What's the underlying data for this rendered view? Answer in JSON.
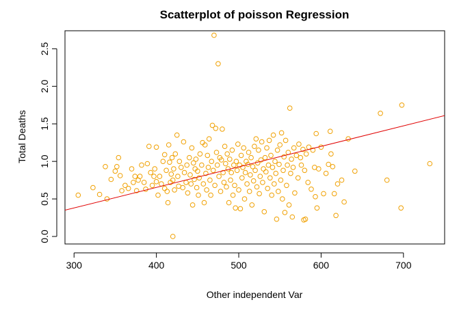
{
  "chart_data": {
    "type": "scatter",
    "title": "Scatterplot of poisson Regression",
    "xlabel": "Other independent Var",
    "ylabel": "Total Deaths",
    "xlim": [
      289,
      750
    ],
    "ylim": [
      -0.1,
      2.74
    ],
    "x_ticks": [
      300,
      400,
      500,
      600,
      700
    ],
    "x_tick_labels": [
      "300",
      "400",
      "500",
      "600",
      "700"
    ],
    "y_ticks": [
      0.0,
      0.5,
      1.0,
      1.5,
      2.0,
      2.5
    ],
    "y_tick_labels": [
      "0.0",
      "0.5",
      "1.0",
      "1.5",
      "2.0",
      "2.5"
    ],
    "grid": false,
    "colors": {
      "points": "#f0a000",
      "line": "#e00000"
    },
    "regression_line": {
      "x": [
        289,
        750
      ],
      "y": [
        0.35,
        1.61
      ]
    },
    "points": [
      [
        305,
        0.55
      ],
      [
        323,
        0.65
      ],
      [
        331,
        0.56
      ],
      [
        338,
        0.93
      ],
      [
        340,
        0.5
      ],
      [
        345,
        0.76
      ],
      [
        350,
        0.87
      ],
      [
        352,
        0.93
      ],
      [
        354,
        1.05
      ],
      [
        356,
        0.81
      ],
      [
        358,
        0.61
      ],
      [
        362,
        0.68
      ],
      [
        366,
        0.64
      ],
      [
        370,
        0.9
      ],
      [
        372,
        0.72
      ],
      [
        374,
        0.8
      ],
      [
        376,
        0.61
      ],
      [
        378,
        0.75
      ],
      [
        380,
        0.8
      ],
      [
        382,
        0.95
      ],
      [
        385,
        0.72
      ],
      [
        387,
        0.63
      ],
      [
        389,
        0.97
      ],
      [
        391,
        1.2
      ],
      [
        393,
        0.85
      ],
      [
        395,
        0.68
      ],
      [
        397,
        0.8
      ],
      [
        398,
        0.9
      ],
      [
        400,
        1.19
      ],
      [
        400,
        0.73
      ],
      [
        402,
        0.55
      ],
      [
        404,
        0.8
      ],
      [
        406,
        0.7
      ],
      [
        408,
        1.0
      ],
      [
        410,
        1.09
      ],
      [
        410,
        0.64
      ],
      [
        412,
        0.88
      ],
      [
        413,
        0.6
      ],
      [
        414,
        0.45
      ],
      [
        415,
        1.22
      ],
      [
        416,
        0.99
      ],
      [
        417,
        0.72
      ],
      [
        418,
        0.83
      ],
      [
        419,
        1.05
      ],
      [
        420,
        0.75
      ],
      [
        420,
        0.0
      ],
      [
        421,
        0.9
      ],
      [
        422,
        0.62
      ],
      [
        423,
        1.1
      ],
      [
        425,
        1.35
      ],
      [
        426,
        0.8
      ],
      [
        427,
        0.67
      ],
      [
        428,
        1.0
      ],
      [
        430,
        0.92
      ],
      [
        432,
        0.65
      ],
      [
        433,
        1.26
      ],
      [
        434,
        0.85
      ],
      [
        436,
        0.72
      ],
      [
        437,
        0.95
      ],
      [
        438,
        0.58
      ],
      [
        440,
        1.05
      ],
      [
        441,
        0.82
      ],
      [
        442,
        0.7
      ],
      [
        443,
        1.18
      ],
      [
        444,
        0.42
      ],
      [
        445,
        0.98
      ],
      [
        446,
        0.76
      ],
      [
        447,
        0.9
      ],
      [
        448,
        1.03
      ],
      [
        449,
        0.65
      ],
      [
        450,
        0.87
      ],
      [
        451,
        0.55
      ],
      [
        452,
        0.78
      ],
      [
        453,
        1.1
      ],
      [
        455,
        0.95
      ],
      [
        456,
        1.25
      ],
      [
        457,
        0.7
      ],
      [
        458,
        0.45
      ],
      [
        459,
        1.22
      ],
      [
        460,
        0.84
      ],
      [
        461,
        0.62
      ],
      [
        462,
        1.08
      ],
      [
        463,
        0.92
      ],
      [
        464,
        1.3
      ],
      [
        465,
        0.75
      ],
      [
        466,
        0.55
      ],
      [
        467,
        1.0
      ],
      [
        468,
        1.48
      ],
      [
        469,
        0.88
      ],
      [
        470,
        2.68
      ],
      [
        471,
        0.68
      ],
      [
        472,
        1.44
      ],
      [
        473,
        1.12
      ],
      [
        474,
        0.95
      ],
      [
        475,
        2.3
      ],
      [
        476,
        0.8
      ],
      [
        477,
        1.05
      ],
      [
        478,
        0.6
      ],
      [
        479,
        1.02
      ],
      [
        480,
        1.43
      ],
      [
        481,
        0.85
      ],
      [
        482,
        0.72
      ],
      [
        483,
        1.2
      ],
      [
        484,
        0.97
      ],
      [
        485,
        0.66
      ],
      [
        486,
        1.1
      ],
      [
        487,
        0.9
      ],
      [
        488,
        0.45
      ],
      [
        489,
        1.03
      ],
      [
        490,
        0.75
      ],
      [
        491,
        0.85
      ],
      [
        492,
        1.15
      ],
      [
        493,
        0.55
      ],
      [
        494,
        0.95
      ],
      [
        495,
        0.68
      ],
      [
        496,
        0.38
      ],
      [
        497,
        1.0
      ],
      [
        498,
        0.88
      ],
      [
        499,
        1.23
      ],
      [
        500,
        0.62
      ],
      [
        501,
        0.95
      ],
      [
        502,
        0.37
      ],
      [
        503,
        1.08
      ],
      [
        504,
        0.78
      ],
      [
        505,
        0.92
      ],
      [
        506,
        1.18
      ],
      [
        507,
        0.5
      ],
      [
        508,
        0.85
      ],
      [
        509,
        1.0
      ],
      [
        510,
        0.7
      ],
      [
        511,
        0.96
      ],
      [
        512,
        1.12
      ],
      [
        513,
        0.6
      ],
      [
        514,
        0.82
      ],
      [
        515,
        1.05
      ],
      [
        516,
        0.42
      ],
      [
        517,
        0.93
      ],
      [
        518,
        0.74
      ],
      [
        519,
        1.2
      ],
      [
        520,
        0.88
      ],
      [
        521,
        1.3
      ],
      [
        522,
        0.66
      ],
      [
        523,
        0.98
      ],
      [
        524,
        1.15
      ],
      [
        525,
        0.57
      ],
      [
        526,
        0.8
      ],
      [
        527,
        1.02
      ],
      [
        528,
        1.26
      ],
      [
        529,
        0.72
      ],
      [
        530,
        0.9
      ],
      [
        531,
        0.33
      ],
      [
        532,
        1.05
      ],
      [
        533,
        0.86
      ],
      [
        534,
        1.18
      ],
      [
        535,
        0.64
      ],
      [
        536,
        0.95
      ],
      [
        537,
        1.28
      ],
      [
        538,
        0.78
      ],
      [
        539,
        1.08
      ],
      [
        540,
        0.55
      ],
      [
        541,
        0.92
      ],
      [
        542,
        1.35
      ],
      [
        543,
        0.7
      ],
      [
        544,
        1.0
      ],
      [
        545,
        0.84
      ],
      [
        546,
        0.23
      ],
      [
        547,
        1.15
      ],
      [
        548,
        0.6
      ],
      [
        549,
        0.96
      ],
      [
        550,
        1.22
      ],
      [
        551,
        0.75
      ],
      [
        552,
        1.38
      ],
      [
        553,
        0.5
      ],
      [
        554,
        0.88
      ],
      [
        555,
        1.06
      ],
      [
        556,
        0.32
      ],
      [
        557,
        1.28
      ],
      [
        558,
        0.68
      ],
      [
        559,
        0.95
      ],
      [
        560,
        1.12
      ],
      [
        561,
        0.42
      ],
      [
        562,
        1.71
      ],
      [
        563,
        0.84
      ],
      [
        564,
        1.03
      ],
      [
        565,
        0.26
      ],
      [
        566,
        0.92
      ],
      [
        567,
        1.18
      ],
      [
        568,
        0.58
      ],
      [
        570,
        1.08
      ],
      [
        572,
        0.78
      ],
      [
        573,
        1.23
      ],
      [
        575,
        1.05
      ],
      [
        576,
        0.95
      ],
      [
        578,
        1.16
      ],
      [
        579,
        0.22
      ],
      [
        580,
        0.88
      ],
      [
        581,
        0.23
      ],
      [
        582,
        1.1
      ],
      [
        584,
        0.72
      ],
      [
        585,
        1.19
      ],
      [
        588,
        0.63
      ],
      [
        590,
        1.15
      ],
      [
        592,
        0.92
      ],
      [
        593,
        0.53
      ],
      [
        594,
        1.37
      ],
      [
        595,
        0.38
      ],
      [
        597,
        0.9
      ],
      [
        600,
        1.19
      ],
      [
        603,
        0.57
      ],
      [
        606,
        0.84
      ],
      [
        609,
        0.96
      ],
      [
        611,
        1.4
      ],
      [
        612,
        1.1
      ],
      [
        614,
        0.93
      ],
      [
        616,
        0.57
      ],
      [
        618,
        0.28
      ],
      [
        620,
        0.7
      ],
      [
        625,
        0.75
      ],
      [
        628,
        0.46
      ],
      [
        633,
        1.3
      ],
      [
        641,
        0.87
      ],
      [
        672,
        1.64
      ],
      [
        680,
        0.75
      ],
      [
        697,
        0.38
      ],
      [
        698,
        1.75
      ],
      [
        732,
        0.97
      ]
    ]
  }
}
